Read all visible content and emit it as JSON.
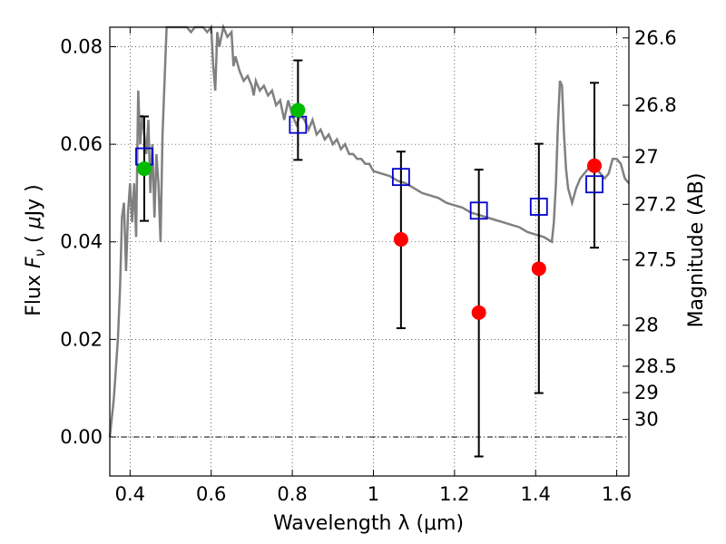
{
  "chart_data": {
    "type": "scatter",
    "xlabel": "Wavelength  λ (μm)",
    "ylabel_parts": [
      "Flux  ",
      "F",
      "ν",
      "  (  ",
      "μ",
      "Jy  )"
    ],
    "y2label": "Magnitude (AB)",
    "xlim": [
      0.35,
      1.63
    ],
    "ylim": [
      -0.008,
      0.084
    ],
    "x_ticks": [
      0.4,
      0.6,
      0.8,
      1.0,
      1.2,
      1.4,
      1.6
    ],
    "x_tick_labels": [
      "0.4",
      "0.6",
      "0.8",
      "1",
      "1.2",
      "1.4",
      "1.6"
    ],
    "y_ticks": [
      0.0,
      0.02,
      0.04,
      0.06,
      0.08
    ],
    "y_tick_labels": [
      "0.00",
      "0.02",
      "0.04",
      "0.06",
      "0.08"
    ],
    "y2_ticks": [
      {
        "label": "26.6",
        "flux": 0.0818
      },
      {
        "label": "26.8",
        "flux": 0.068
      },
      {
        "label": "27",
        "flux": 0.0574
      },
      {
        "label": "27.2",
        "flux": 0.0477
      },
      {
        "label": "27.5",
        "flux": 0.0363
      },
      {
        "label": "28",
        "flux": 0.0229
      },
      {
        "label": "28.5",
        "flux": 0.0145
      },
      {
        "label": "29",
        "flux": 0.0091
      },
      {
        "label": "30",
        "flux": 0.0036
      }
    ],
    "grid": true,
    "colors": {
      "sed": "#808080",
      "model": "#0000cc",
      "detection": "#ff0000",
      "optical": "#00bb00",
      "errorbar": "#000000"
    },
    "sed_curve": [
      [
        0.35,
        0.0
      ],
      [
        0.36,
        0.008
      ],
      [
        0.37,
        0.02
      ],
      [
        0.375,
        0.03
      ],
      [
        0.38,
        0.045
      ],
      [
        0.385,
        0.048
      ],
      [
        0.39,
        0.034
      ],
      [
        0.395,
        0.046
      ],
      [
        0.4,
        0.052
      ],
      [
        0.405,
        0.044
      ],
      [
        0.41,
        0.052
      ],
      [
        0.415,
        0.041
      ],
      [
        0.42,
        0.071
      ],
      [
        0.425,
        0.06
      ],
      [
        0.43,
        0.066
      ],
      [
        0.44,
        0.058
      ],
      [
        0.445,
        0.065
      ],
      [
        0.45,
        0.05
      ],
      [
        0.455,
        0.06
      ],
      [
        0.46,
        0.045
      ],
      [
        0.465,
        0.058
      ],
      [
        0.47,
        0.052
      ],
      [
        0.475,
        0.04
      ],
      [
        0.48,
        0.062
      ],
      [
        0.49,
        0.084
      ],
      [
        0.5,
        0.086
      ],
      [
        0.51,
        0.084
      ],
      [
        0.52,
        0.086
      ],
      [
        0.53,
        0.084
      ],
      [
        0.54,
        0.086
      ],
      [
        0.55,
        0.083
      ],
      [
        0.56,
        0.086
      ],
      [
        0.57,
        0.084
      ],
      [
        0.58,
        0.085
      ],
      [
        0.59,
        0.083
      ],
      [
        0.6,
        0.084
      ],
      [
        0.605,
        0.076
      ],
      [
        0.61,
        0.071
      ],
      [
        0.615,
        0.083
      ],
      [
        0.62,
        0.08
      ],
      [
        0.63,
        0.084
      ],
      [
        0.64,
        0.082
      ],
      [
        0.65,
        0.083
      ],
      [
        0.655,
        0.076
      ],
      [
        0.66,
        0.078
      ],
      [
        0.67,
        0.075
      ],
      [
        0.68,
        0.073
      ],
      [
        0.69,
        0.074
      ],
      [
        0.7,
        0.072
      ],
      [
        0.705,
        0.07
      ],
      [
        0.71,
        0.073
      ],
      [
        0.72,
        0.071
      ],
      [
        0.73,
        0.072
      ],
      [
        0.74,
        0.07
      ],
      [
        0.75,
        0.071
      ],
      [
        0.76,
        0.068
      ],
      [
        0.77,
        0.069
      ],
      [
        0.78,
        0.065
      ],
      [
        0.79,
        0.069
      ],
      [
        0.8,
        0.066
      ],
      [
        0.81,
        0.064
      ],
      [
        0.82,
        0.066
      ],
      [
        0.83,
        0.065
      ],
      [
        0.84,
        0.063
      ],
      [
        0.85,
        0.065
      ],
      [
        0.86,
        0.062
      ],
      [
        0.87,
        0.063
      ],
      [
        0.88,
        0.061
      ],
      [
        0.89,
        0.062
      ],
      [
        0.9,
        0.06
      ],
      [
        0.91,
        0.061
      ],
      [
        0.92,
        0.059
      ],
      [
        0.93,
        0.06
      ],
      [
        0.94,
        0.058
      ],
      [
        0.95,
        0.058
      ],
      [
        0.96,
        0.057
      ],
      [
        0.97,
        0.057
      ],
      [
        0.98,
        0.056
      ],
      [
        0.99,
        0.056
      ],
      [
        1.0,
        0.0545
      ],
      [
        1.02,
        0.054
      ],
      [
        1.04,
        0.0535
      ],
      [
        1.06,
        0.0525
      ],
      [
        1.08,
        0.052
      ],
      [
        1.1,
        0.051
      ],
      [
        1.12,
        0.05
      ],
      [
        1.14,
        0.0495
      ],
      [
        1.16,
        0.049
      ],
      [
        1.18,
        0.048
      ],
      [
        1.2,
        0.0475
      ],
      [
        1.22,
        0.047
      ],
      [
        1.24,
        0.046
      ],
      [
        1.26,
        0.0455
      ],
      [
        1.28,
        0.045
      ],
      [
        1.3,
        0.0445
      ],
      [
        1.32,
        0.044
      ],
      [
        1.34,
        0.0435
      ],
      [
        1.36,
        0.043
      ],
      [
        1.38,
        0.042
      ],
      [
        1.4,
        0.0415
      ],
      [
        1.42,
        0.041
      ],
      [
        1.44,
        0.04
      ],
      [
        1.445,
        0.044
      ],
      [
        1.45,
        0.052
      ],
      [
        1.455,
        0.064
      ],
      [
        1.46,
        0.073
      ],
      [
        1.465,
        0.072
      ],
      [
        1.47,
        0.062
      ],
      [
        1.475,
        0.055
      ],
      [
        1.48,
        0.051
      ],
      [
        1.49,
        0.048
      ],
      [
        1.5,
        0.051
      ],
      [
        1.51,
        0.053
      ],
      [
        1.52,
        0.054
      ],
      [
        1.53,
        0.055
      ],
      [
        1.54,
        0.056
      ],
      [
        1.55,
        0.055
      ],
      [
        1.56,
        0.054
      ],
      [
        1.57,
        0.053
      ],
      [
        1.58,
        0.054
      ],
      [
        1.59,
        0.057
      ],
      [
        1.6,
        0.057
      ],
      [
        1.61,
        0.056
      ],
      [
        1.62,
        0.053
      ],
      [
        1.63,
        0.052
      ]
    ],
    "model_points": [
      {
        "x": 0.435,
        "y": 0.0575
      },
      {
        "x": 0.814,
        "y": 0.064
      },
      {
        "x": 1.068,
        "y": 0.0533
      },
      {
        "x": 1.26,
        "y": 0.0464
      },
      {
        "x": 1.408,
        "y": 0.0472
      },
      {
        "x": 1.545,
        "y": 0.0518
      }
    ],
    "detections": [
      {
        "x": 0.435,
        "y": 0.055,
        "color": "optical",
        "err_low": 0.0443,
        "err_high": 0.0657
      },
      {
        "x": 0.814,
        "y": 0.067,
        "color": "optical",
        "err_low": 0.0568,
        "err_high": 0.0772
      },
      {
        "x": 1.068,
        "y": 0.0405,
        "color": "detection",
        "err_low": 0.0223,
        "err_high": 0.0585
      },
      {
        "x": 1.26,
        "y": 0.0255,
        "color": "detection",
        "err_low": -0.004,
        "err_high": 0.0548
      },
      {
        "x": 1.408,
        "y": 0.0345,
        "color": "detection",
        "err_low": 0.009,
        "err_high": 0.0601
      },
      {
        "x": 1.545,
        "y": 0.0556,
        "color": "detection",
        "err_low": 0.0388,
        "err_high": 0.0726
      }
    ]
  }
}
